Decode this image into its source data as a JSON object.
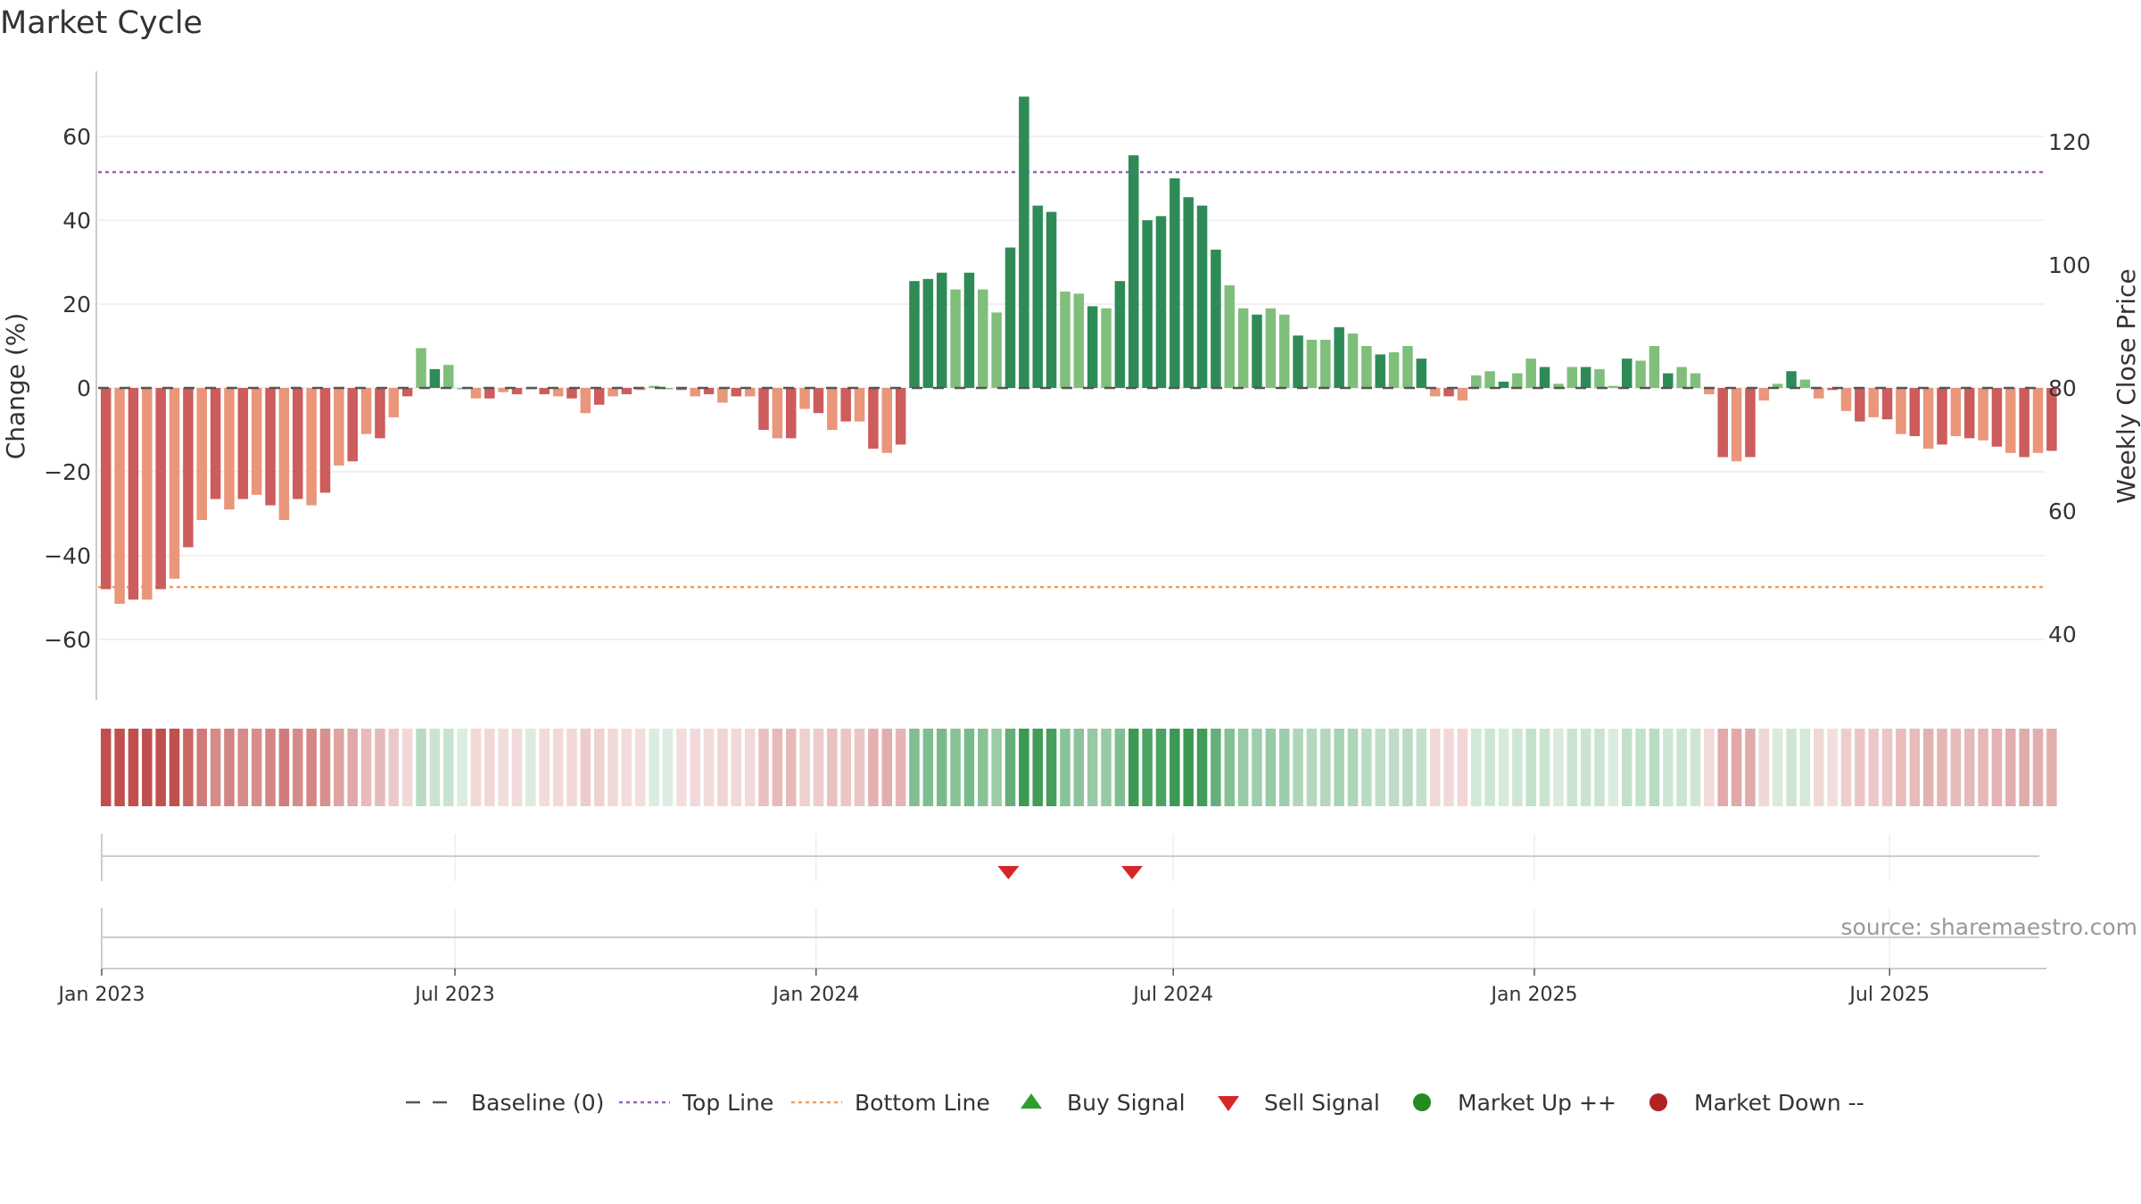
{
  "chart_data": {
    "type": "bar",
    "title": "Market Cycle",
    "ylabel": "Change (%)",
    "y2label": "Weekly Close Price",
    "source": "source: sharemaestro.com",
    "ylim": [
      -75,
      75
    ],
    "y2lim": [
      30,
      135
    ],
    "yticks": [
      60,
      40,
      20,
      0,
      -20,
      -40,
      -60
    ],
    "y2ticks": [
      120,
      100,
      80,
      60,
      40
    ],
    "x_start": "2023-01-02",
    "x_end": "2025-09-29",
    "xticks": [
      {
        "date": "2023-01-02",
        "label": "Jan 2023"
      },
      {
        "date": "2023-07-01",
        "label": "Jul 2023"
      },
      {
        "date": "2024-01-01",
        "label": "Jan 2024"
      },
      {
        "date": "2024-07-01",
        "label": "Jul 2024"
      },
      {
        "date": "2025-01-01",
        "label": "Jan 2025"
      },
      {
        "date": "2025-07-01",
        "label": "Jul 2025"
      }
    ],
    "top_line": 51.5,
    "bottom_line": -47.5,
    "grid": true,
    "legend_position": "bottom-center",
    "colors": {
      "strong_up": "#2e8b57",
      "up": "#7fbf7b",
      "strong_down": "#cd5c5c",
      "down": "#e9967a",
      "top_line": "#9467bd",
      "bottom_line": "#e8a060",
      "baseline": "#555555",
      "buy": "#2ca02c",
      "sell": "#d62728",
      "market_up": "#228b22",
      "market_down": "#b22222"
    },
    "series": [
      {
        "values": [
          -48,
          -51.5,
          -50.5,
          -50.5,
          -48,
          -45.5,
          -38,
          -31.5,
          -26.5,
          -29,
          -26.5,
          -25.5,
          -28,
          -31.5,
          -26.5,
          -28,
          -25,
          -18.5,
          -17.5,
          -11,
          -12,
          -7,
          -2,
          9.5,
          4.5,
          5.5,
          0,
          -2.5,
          -2.5,
          -1,
          -1.5,
          0,
          -1.5,
          -2,
          -2.5,
          -6,
          -4,
          -2,
          -1.5,
          -0.5,
          0.5,
          0,
          -0.5,
          -2,
          -1.5,
          -3.5,
          -2,
          -2,
          -10,
          -12,
          -12,
          -5,
          -6,
          -10,
          -8,
          -8,
          -14.5,
          -15.5,
          -13.5,
          25.5,
          26,
          27.5,
          23.5,
          27.5,
          23.5,
          18,
          33.5,
          69.5,
          43.5,
          42,
          23,
          22.5,
          19.5,
          19,
          25.5,
          55.5,
          40,
          41,
          50,
          45.5,
          43.5,
          33,
          24.5,
          19,
          17.5,
          19,
          17.5,
          12.5,
          11.5,
          11.5,
          14.5,
          13,
          10,
          8,
          8.5,
          10,
          7,
          -2,
          -2,
          -3,
          3,
          4,
          1.5,
          3.5,
          7,
          5,
          1,
          5,
          5,
          4.5,
          0.5,
          7,
          6.5,
          10,
          3.5,
          5,
          3.5,
          -1.5,
          -16.5,
          -17.5,
          -16.5,
          -3,
          1,
          4,
          2,
          -2.5,
          -0.5,
          -5.5,
          -8,
          -7,
          -7.5,
          -11,
          -11.5,
          -14.5,
          -13.5,
          -11.5,
          -12,
          -12.5,
          -14,
          -15.5,
          -16.5,
          -15.5,
          -15
        ]
      }
    ],
    "sell_signals": [
      "2024-04-08",
      "2024-06-10"
    ],
    "buy_signals": [],
    "legend": [
      {
        "key": "baseline",
        "label": "Baseline (0)"
      },
      {
        "key": "top_line",
        "label": "Top Line"
      },
      {
        "key": "bottom_line",
        "label": "Bottom Line"
      },
      {
        "key": "buy",
        "label": "Buy Signal"
      },
      {
        "key": "sell",
        "label": "Sell Signal"
      },
      {
        "key": "market_up",
        "label": "Market Up ++"
      },
      {
        "key": "market_down",
        "label": "Market Down --"
      }
    ]
  }
}
